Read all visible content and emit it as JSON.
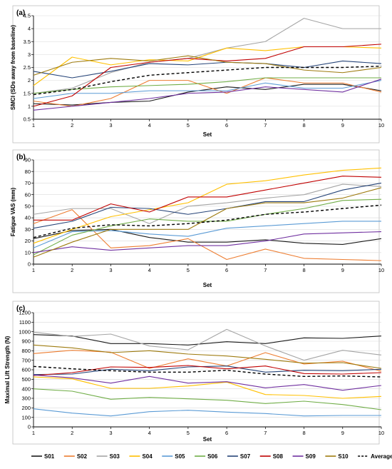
{
  "colors": {
    "S01": "#1a1a1a",
    "S02": "#ED7D31",
    "S03": "#A5A5A5",
    "S04": "#FFC000",
    "S05": "#5B9BD5",
    "S06": "#70AD47",
    "S07": "#264478",
    "S08": "#C00000",
    "S09": "#7030A0",
    "S10": "#9E7B0F",
    "Average": "#000000"
  },
  "legend": {
    "placement": "bottom",
    "entries": [
      "S01",
      "S02",
      "S03",
      "S04",
      "S05",
      "S06",
      "S07",
      "S08",
      "S09",
      "S10",
      "Average"
    ]
  },
  "chart_data": [
    {
      "type": "line",
      "panel": "(a)",
      "title": "",
      "xlabel": "Set",
      "ylabel": "SMCI (SDs away from baseline)",
      "x": [
        1,
        2,
        3,
        4,
        5,
        6,
        7,
        8,
        9,
        10
      ],
      "xlim": [
        1,
        10
      ],
      "ylim": [
        0.5,
        4.5
      ],
      "yticks": [
        0.5,
        1,
        1.5,
        2,
        2.5,
        3,
        3.5,
        4,
        4.5
      ],
      "ytick_labels": [
        "0.5",
        "1",
        "1.5",
        "2",
        "2.5",
        "3",
        "3.5",
        "4",
        "4.5"
      ],
      "grid": "horizontal",
      "series": [
        {
          "name": "S01",
          "values": [
            1.1,
            1.05,
            1.15,
            1.2,
            1.55,
            1.75,
            1.65,
            1.85,
            1.85,
            1.6
          ]
        },
        {
          "name": "S02",
          "values": [
            1.2,
            1.0,
            1.3,
            2.0,
            2.0,
            1.5,
            2.1,
            1.9,
            1.9,
            1.55
          ]
        },
        {
          "name": "S03",
          "values": [
            1.5,
            1.7,
            2.3,
            2.7,
            2.85,
            3.25,
            3.5,
            4.4,
            4.0,
            4.0
          ]
        },
        {
          "name": "S04",
          "values": [
            1.8,
            2.9,
            2.6,
            2.8,
            2.75,
            3.25,
            3.15,
            3.3,
            3.3,
            3.25
          ]
        },
        {
          "name": "S05",
          "values": [
            1.3,
            1.5,
            1.5,
            1.6,
            1.6,
            1.6,
            1.9,
            1.7,
            1.7,
            2.0
          ]
        },
        {
          "name": "S06",
          "values": [
            1.5,
            1.65,
            1.75,
            1.8,
            1.85,
            1.95,
            2.1,
            2.1,
            2.1,
            2.1
          ]
        },
        {
          "name": "S07",
          "values": [
            2.35,
            2.1,
            2.35,
            2.65,
            2.6,
            2.7,
            2.65,
            2.5,
            2.75,
            2.65
          ]
        },
        {
          "name": "S08",
          "values": [
            1.0,
            1.4,
            2.5,
            2.7,
            2.85,
            2.75,
            2.85,
            3.3,
            3.3,
            3.4
          ]
        },
        {
          "name": "S09",
          "values": [
            0.85,
            1.0,
            1.15,
            1.3,
            1.5,
            1.55,
            1.75,
            1.65,
            1.55,
            2.05
          ]
        },
        {
          "name": "S10",
          "values": [
            2.2,
            2.7,
            2.85,
            2.75,
            2.95,
            2.7,
            2.65,
            2.4,
            2.3,
            2.5
          ]
        },
        {
          "name": "Average",
          "dashed": true,
          "values": [
            1.45,
            1.65,
            1.95,
            2.2,
            2.3,
            2.4,
            2.5,
            2.5,
            2.5,
            2.55
          ]
        }
      ]
    },
    {
      "type": "line",
      "panel": "(b)",
      "title": "",
      "xlabel": "Set",
      "ylabel": "Fatigue VAS (mm)",
      "x": [
        1,
        2,
        3,
        4,
        5,
        6,
        7,
        8,
        9,
        10
      ],
      "xlim": [
        1,
        10
      ],
      "ylim": [
        0,
        90
      ],
      "yticks": [
        0,
        10,
        20,
        30,
        40,
        50,
        60,
        70,
        80,
        90
      ],
      "ytick_labels": [
        "0",
        "10",
        "20",
        "30",
        "40",
        "50",
        "60",
        "70",
        "80",
        "90"
      ],
      "grid": "horizontal",
      "series": [
        {
          "name": "S01",
          "values": [
            22,
            29,
            30,
            23,
            19,
            19,
            21,
            18,
            17,
            22
          ]
        },
        {
          "name": "S02",
          "values": [
            35,
            47,
            14,
            16,
            22,
            4,
            13,
            5,
            4,
            3
          ]
        },
        {
          "name": "S03",
          "values": [
            43,
            48,
            48,
            35,
            50,
            53,
            57,
            60,
            69,
            67
          ]
        },
        {
          "name": "S04",
          "values": [
            18,
            30,
            41,
            47,
            53,
            69,
            72,
            77,
            81,
            83
          ]
        },
        {
          "name": "S05",
          "values": [
            14,
            28,
            29,
            26,
            24,
            31,
            33,
            35,
            37,
            37
          ]
        },
        {
          "name": "S06",
          "values": [
            8,
            25,
            33,
            39,
            37,
            37,
            43,
            48,
            55,
            56
          ]
        },
        {
          "name": "S07",
          "values": [
            31,
            37,
            49,
            48,
            43,
            48,
            54,
            54,
            64,
            70
          ]
        },
        {
          "name": "S08",
          "values": [
            38,
            38,
            52,
            45,
            58,
            58,
            64,
            70,
            76,
            75
          ]
        },
        {
          "name": "S09",
          "values": [
            10,
            15,
            12,
            14,
            16,
            16,
            20,
            26,
            27,
            28
          ]
        },
        {
          "name": "S10",
          "values": [
            6,
            19,
            30,
            30,
            30,
            48,
            53,
            53,
            57,
            66
          ]
        },
        {
          "name": "Average",
          "dashed": true,
          "values": [
            23,
            31,
            34,
            33,
            35,
            38,
            43,
            45,
            48,
            51
          ]
        }
      ]
    },
    {
      "type": "line",
      "panel": "(c)",
      "title": "",
      "xlabel": "Set",
      "ylabel": "Maximal Lift Strength (N)",
      "x": [
        1,
        2,
        3,
        4,
        5,
        6,
        7,
        8,
        9,
        10
      ],
      "xlim": [
        1,
        10
      ],
      "ylim": [
        0,
        1200
      ],
      "yticks": [
        0,
        100,
        200,
        300,
        400,
        500,
        600,
        700,
        800,
        900,
        1000,
        1100,
        1200
      ],
      "ytick_labels": [
        "0",
        "100",
        "200",
        "300",
        "400",
        "500",
        "600",
        "700",
        "800",
        "900",
        "1000",
        "1100",
        "1200"
      ],
      "grid": "horizontal",
      "series": [
        {
          "name": "S01",
          "values": [
            970,
            955,
            875,
            875,
            860,
            895,
            875,
            935,
            930,
            955
          ]
        },
        {
          "name": "S02",
          "values": [
            770,
            805,
            785,
            615,
            715,
            640,
            780,
            660,
            690,
            585
          ]
        },
        {
          "name": "S03",
          "values": [
            995,
            950,
            975,
            850,
            810,
            1025,
            850,
            700,
            805,
            755
          ]
        },
        {
          "name": "S04",
          "values": [
            525,
            505,
            405,
            405,
            430,
            470,
            340,
            330,
            300,
            320
          ]
        },
        {
          "name": "S05",
          "values": [
            190,
            145,
            115,
            160,
            175,
            155,
            140,
            115,
            120,
            120
          ]
        },
        {
          "name": "S06",
          "values": [
            400,
            375,
            290,
            310,
            295,
            280,
            245,
            270,
            235,
            180
          ]
        },
        {
          "name": "S07",
          "values": [
            550,
            555,
            605,
            590,
            630,
            640,
            575,
            595,
            590,
            605
          ]
        },
        {
          "name": "S08",
          "values": [
            540,
            570,
            630,
            625,
            645,
            610,
            640,
            560,
            555,
            570
          ]
        },
        {
          "name": "S09",
          "values": [
            545,
            515,
            460,
            530,
            460,
            475,
            410,
            445,
            385,
            435
          ]
        },
        {
          "name": "S10",
          "values": [
            860,
            830,
            780,
            800,
            765,
            745,
            710,
            670,
            675,
            615
          ]
        },
        {
          "name": "Average",
          "dashed": true,
          "values": [
            635,
            610,
            590,
            575,
            575,
            595,
            555,
            530,
            535,
            525
          ]
        }
      ]
    }
  ]
}
